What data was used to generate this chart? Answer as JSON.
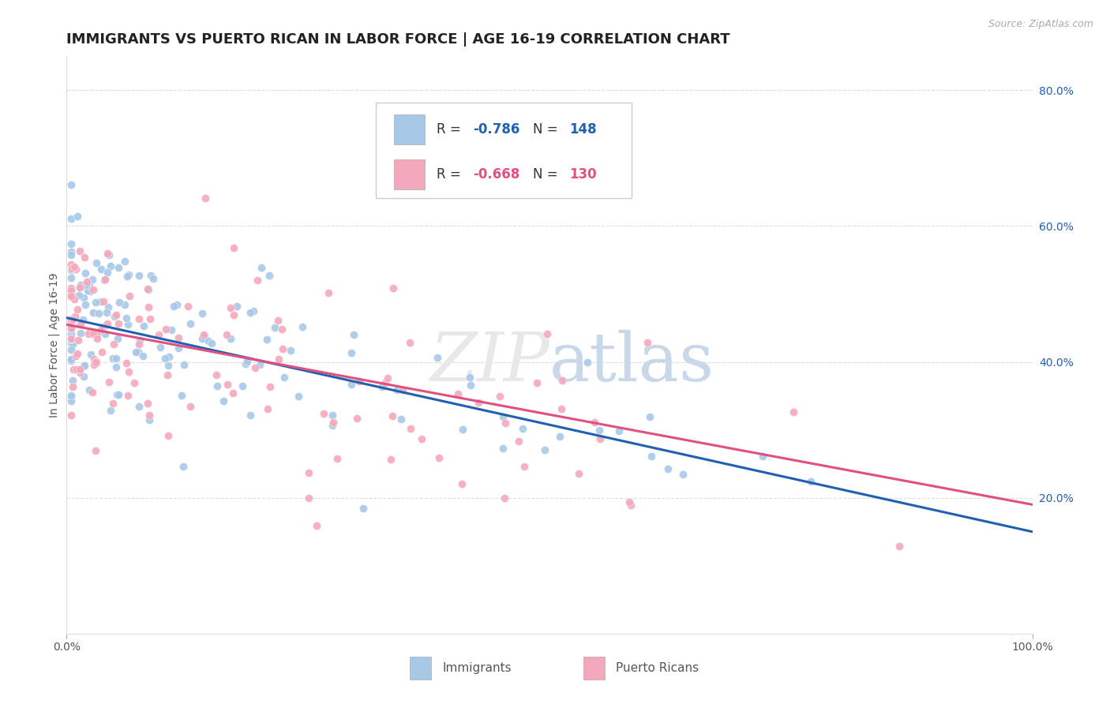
{
  "title": "IMMIGRANTS VS PUERTO RICAN IN LABOR FORCE | AGE 16-19 CORRELATION CHART",
  "source": "Source: ZipAtlas.com",
  "ylabel": "In Labor Force | Age 16-19",
  "xlim": [
    0.0,
    1.0
  ],
  "ylim": [
    0.0,
    0.85
  ],
  "y_tick_values_right": [
    0.2,
    0.4,
    0.6,
    0.8
  ],
  "y_tick_labels_right": [
    "20.0%",
    "40.0%",
    "60.0%",
    "80.0%"
  ],
  "immigrants_R": "-0.786",
  "immigrants_N": "148",
  "puertoricans_R": "-0.668",
  "puertoricans_N": "130",
  "immigrant_color": "#a8c8e8",
  "puertoricans_color": "#f4a8bc",
  "line_immigrant_color": "#2060b0",
  "line_puertoricans_color": "#e05080",
  "background_color": "#ffffff",
  "grid_color": "#dddddd",
  "title_fontsize": 13,
  "axis_label_fontsize": 10,
  "tick_fontsize": 10
}
